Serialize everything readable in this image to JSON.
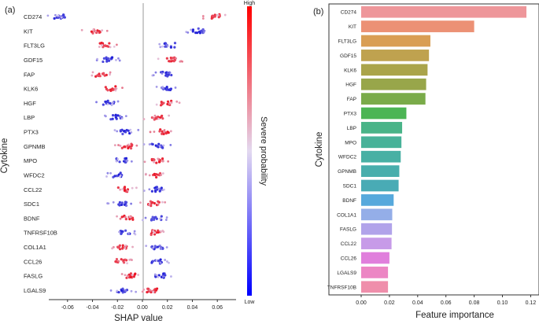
{
  "chart_data": [
    {
      "panel_label": "(a)",
      "type": "scatter",
      "xlabel": "SHAP value",
      "ylabel": "Cytokine",
      "xlim": [
        -0.075,
        0.075
      ],
      "xticks": [
        "-0.06",
        "-0.04",
        "-0.02",
        "0.00",
        "0.02",
        "0.04",
        "0.06"
      ],
      "xtick_values": [
        -0.06,
        -0.04,
        -0.02,
        0.0,
        0.02,
        0.04,
        0.06
      ],
      "colorbar": {
        "label": "Severe probability",
        "high": "High",
        "low": "Low",
        "high_color": "#ff0000",
        "low_color": "#0000ff"
      },
      "features": [
        {
          "name": "CD274",
          "blue_center": -0.066,
          "red_center": 0.058
        },
        {
          "name": "KIT",
          "blue_center": 0.045,
          "red_center": -0.038
        },
        {
          "name": "FLT3LG",
          "blue_center": 0.022,
          "red_center": -0.031
        },
        {
          "name": "GDF15",
          "blue_center": -0.028,
          "red_center": 0.022
        },
        {
          "name": "FAP",
          "blue_center": 0.019,
          "red_center": -0.033
        },
        {
          "name": "KLK6",
          "blue_center": 0.019,
          "red_center": -0.026
        },
        {
          "name": "HGF",
          "blue_center": -0.027,
          "red_center": 0.019
        },
        {
          "name": "LBP",
          "blue_center": -0.021,
          "red_center": 0.012
        },
        {
          "name": "PTX3",
          "blue_center": -0.013,
          "red_center": 0.017
        },
        {
          "name": "GPNMB",
          "blue_center": 0.012,
          "red_center": -0.012
        },
        {
          "name": "MPO",
          "blue_center": -0.017,
          "red_center": 0.012
        },
        {
          "name": "WFDC2",
          "blue_center": -0.019,
          "red_center": 0.011
        },
        {
          "name": "CCL22",
          "blue_center": 0.011,
          "red_center": -0.015
        },
        {
          "name": "SDC1",
          "blue_center": -0.017,
          "red_center": 0.009
        },
        {
          "name": "BDNF",
          "blue_center": 0.011,
          "red_center": -0.012
        },
        {
          "name": "TNFRSF10B",
          "blue_center": -0.014,
          "red_center": 0.01
        },
        {
          "name": "COL1A1",
          "blue_center": 0.012,
          "red_center": -0.017
        },
        {
          "name": "CCL26",
          "blue_center": 0.011,
          "red_center": -0.017
        },
        {
          "name": "FASLG",
          "blue_center": 0.014,
          "red_center": -0.009
        },
        {
          "name": "LGALS9",
          "blue_center": -0.016,
          "red_center": 0.008
        }
      ]
    },
    {
      "panel_label": "(b)",
      "type": "bar",
      "orientation": "horizontal",
      "xlabel": "Feature importance",
      "ylabel": "Cytokine",
      "xlim": [
        0,
        0.122
      ],
      "xticks": [
        "0.00",
        "0.02",
        "0.04",
        "0.06",
        "0.08",
        "0.10",
        "0.12"
      ],
      "xtick_values": [
        0.0,
        0.02,
        0.04,
        0.06,
        0.08,
        0.1,
        0.12
      ],
      "categories": [
        "CD274",
        "KIT",
        "FLT3LG",
        "GDF15",
        "KLK6",
        "HGF",
        "FAP",
        "PTX3",
        "LBP",
        "MPO",
        "WFDC2",
        "GPNMB",
        "SDC1",
        "BDNF",
        "COL1A1",
        "FASLG",
        "CCL22",
        "CCL26",
        "LGALS9",
        "TNFRSF10B"
      ],
      "values": [
        0.117,
        0.08,
        0.049,
        0.048,
        0.047,
        0.046,
        0.0455,
        0.032,
        0.029,
        0.0285,
        0.028,
        0.027,
        0.0265,
        0.023,
        0.022,
        0.0218,
        0.0215,
        0.02,
        0.019,
        0.019
      ],
      "colors": [
        "#ee969a",
        "#ec9175",
        "#d99e54",
        "#bfa24f",
        "#aaa44a",
        "#98a64a",
        "#7aab49",
        "#4cb554",
        "#49b488",
        "#48b299",
        "#48b0a4",
        "#48aeac",
        "#49abb5",
        "#57a9dc",
        "#94aee8",
        "#b1a3ea",
        "#c79be8",
        "#e07fdc",
        "#ec86c4",
        "#ef8eab"
      ]
    }
  ]
}
